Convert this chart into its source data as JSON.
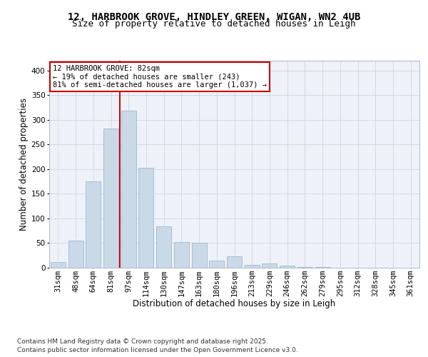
{
  "title_line1": "12, HARBROOK GROVE, HINDLEY GREEN, WIGAN, WN2 4UB",
  "title_line2": "Size of property relative to detached houses in Leigh",
  "xlabel": "Distribution of detached houses by size in Leigh",
  "ylabel": "Number of detached properties",
  "categories": [
    "31sqm",
    "48sqm",
    "64sqm",
    "81sqm",
    "97sqm",
    "114sqm",
    "130sqm",
    "147sqm",
    "163sqm",
    "180sqm",
    "196sqm",
    "213sqm",
    "229sqm",
    "246sqm",
    "262sqm",
    "279sqm",
    "295sqm",
    "312sqm",
    "328sqm",
    "345sqm",
    "361sqm"
  ],
  "values": [
    12,
    55,
    175,
    282,
    318,
    203,
    84,
    52,
    50,
    15,
    23,
    6,
    9,
    5,
    1,
    1,
    0,
    0,
    0,
    0,
    0
  ],
  "bar_color": "#c9d9e8",
  "bar_edge_color": "#a0b8cc",
  "annotation_text": "12 HARBROOK GROVE: 82sqm\n← 19% of detached houses are smaller (243)\n81% of semi-detached houses are larger (1,037) →",
  "annotation_box_color": "#ffffff",
  "annotation_box_edge": "#cc0000",
  "vline_color": "#cc0000",
  "grid_color": "#d0d8e8",
  "bg_color": "#eef2f8",
  "ylim": [
    0,
    420
  ],
  "yticks": [
    0,
    50,
    100,
    150,
    200,
    250,
    300,
    350,
    400
  ],
  "title_fontsize": 10,
  "subtitle_fontsize": 9,
  "axis_label_fontsize": 8.5,
  "tick_fontsize": 7.5,
  "annotation_fontsize": 7.5,
  "footer_fontsize": 6.5,
  "footer": "Contains HM Land Registry data © Crown copyright and database right 2025.\nContains public sector information licensed under the Open Government Licence v3.0."
}
